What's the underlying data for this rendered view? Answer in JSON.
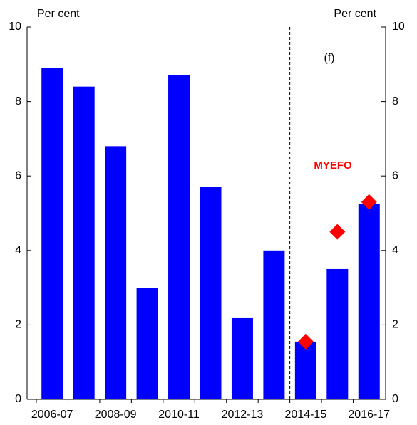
{
  "chart_data": {
    "type": "bar",
    "categories": [
      "2006-07",
      null,
      "2008-09",
      null,
      "2010-11",
      null,
      "2012-13",
      null,
      "2014-15",
      null,
      "2016-17"
    ],
    "values": [
      8.9,
      8.4,
      6.8,
      3.0,
      8.7,
      5.7,
      2.2,
      4.0,
      1.55,
      3.5,
      5.25
    ],
    "color": "#0000ff",
    "markers": {
      "label": "MYEFO",
      "color": "#ff0000",
      "values": [
        null,
        null,
        null,
        null,
        null,
        null,
        null,
        null,
        1.55,
        4.5,
        5.3
      ]
    },
    "annotation": "(f)",
    "ylabel": "Per cent",
    "y2label": "Per cent",
    "ylim": [
      0,
      10
    ],
    "yticks": [
      0,
      2,
      4,
      6,
      8,
      10
    ],
    "y2lim": [
      0,
      10
    ],
    "y2ticks": [
      0,
      2,
      4,
      6,
      8,
      10
    ]
  }
}
